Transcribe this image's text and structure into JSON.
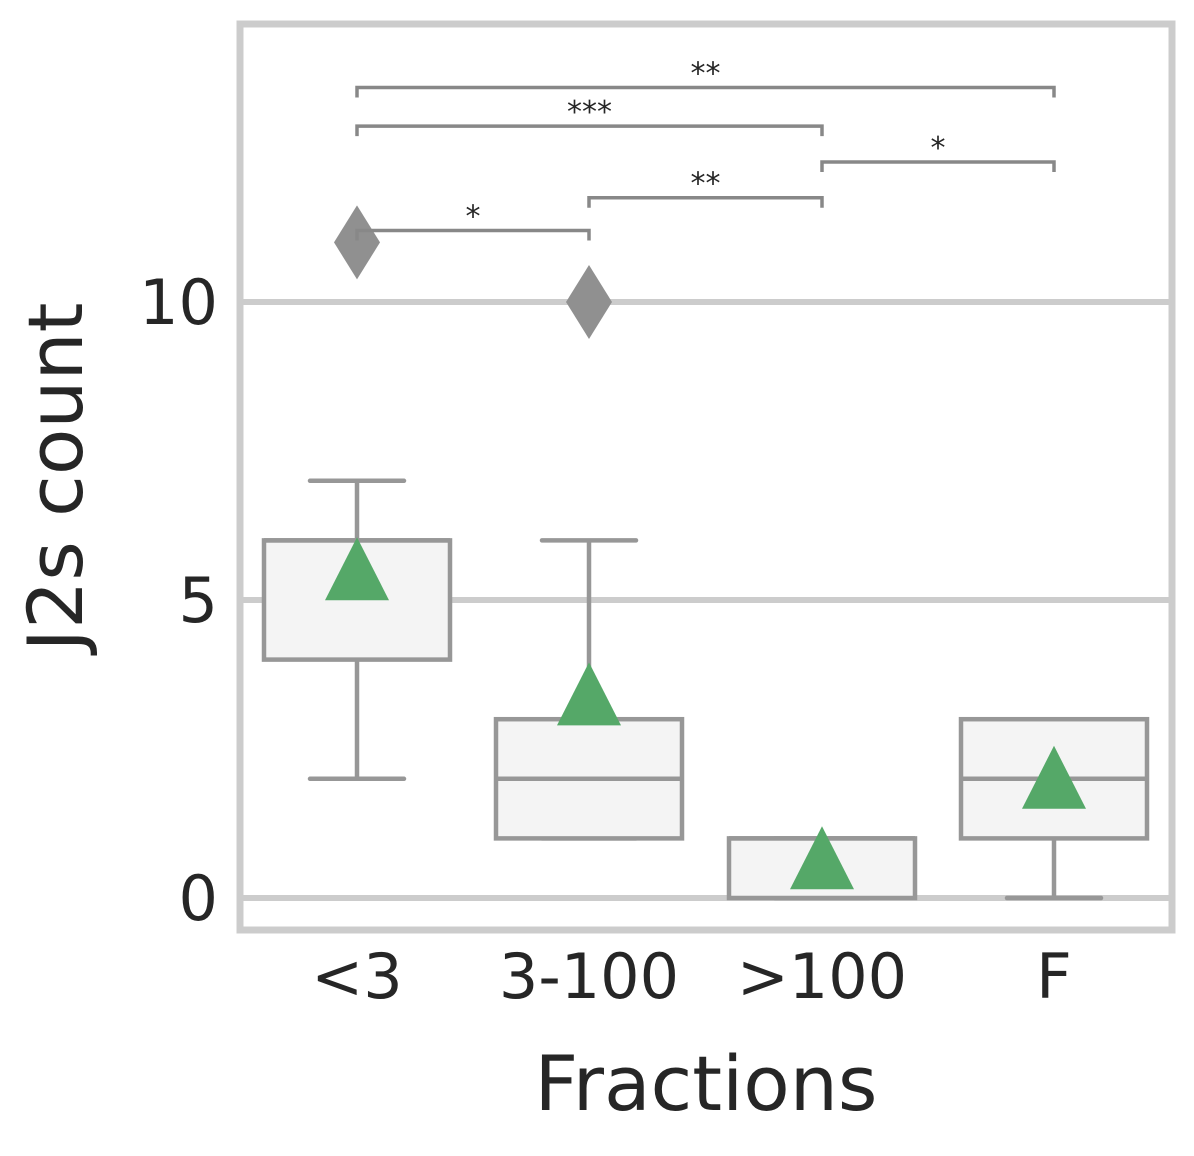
{
  "chart_data": {
    "type": "box",
    "xlabel": "Fractions",
    "ylabel": "J2s count",
    "ylim": [
      -0.5,
      14.6
    ],
    "yticks": [
      0,
      5,
      10
    ],
    "grid": "horizontal",
    "categories": [
      "<3",
      "3-100",
      ">100",
      "F"
    ],
    "boxes": [
      {
        "category": "<3",
        "whisker_low": 2,
        "q1": 4,
        "median": 6,
        "q3": 6,
        "whisker_high": 7,
        "mean": 5.5,
        "outliers": [
          11
        ]
      },
      {
        "category": "3-100",
        "whisker_low": 1,
        "q1": 1,
        "median": 2,
        "q3": 3,
        "whisker_high": 6,
        "mean": 3.4,
        "outliers": [
          10
        ]
      },
      {
        "category": ">100",
        "whisker_low": 0,
        "q1": 0,
        "median": 1,
        "q3": 1,
        "whisker_high": 1,
        "mean": 0.65,
        "outliers": []
      },
      {
        "category": "F",
        "whisker_low": 0,
        "q1": 1,
        "median": 2,
        "q3": 3,
        "whisker_high": 3,
        "mean": 2.0,
        "outliers": []
      }
    ],
    "significance": [
      {
        "from": 0,
        "to": 1,
        "label": "*",
        "y": 11.2
      },
      {
        "from": 1,
        "to": 2,
        "label": "**",
        "y": 11.75
      },
      {
        "from": 2,
        "to": 3,
        "label": "*",
        "y": 12.35
      },
      {
        "from": 0,
        "to": 2,
        "label": "***",
        "y": 12.95
      },
      {
        "from": 0,
        "to": 3,
        "label": "**",
        "y": 13.6
      }
    ],
    "colors": {
      "box_fill": "#f4f4f4",
      "box_edge": "#979797",
      "mean_marker": "#55a868",
      "outlier": "#909090",
      "grid": "#cccccc",
      "frame": "#cccccc",
      "bracket": "#888888",
      "text": "#262626"
    }
  }
}
